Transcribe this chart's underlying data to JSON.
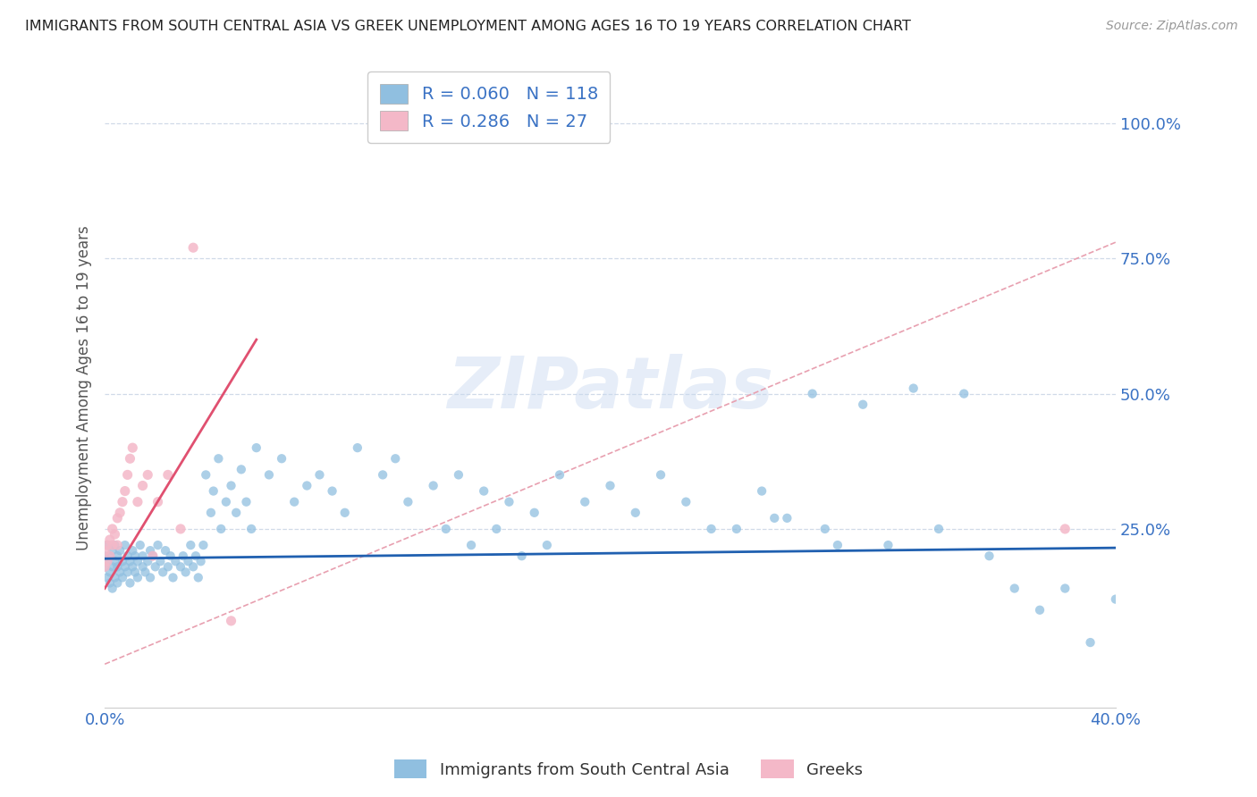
{
  "title": "IMMIGRANTS FROM SOUTH CENTRAL ASIA VS GREEK UNEMPLOYMENT AMONG AGES 16 TO 19 YEARS CORRELATION CHART",
  "source": "Source: ZipAtlas.com",
  "ylabel": "Unemployment Among Ages 16 to 19 years",
  "xlim": [
    0.0,
    0.4
  ],
  "ylim": [
    -0.08,
    1.1
  ],
  "yticks": [
    0.0,
    0.25,
    0.5,
    0.75,
    1.0
  ],
  "yticklabels": [
    "",
    "25.0%",
    "50.0%",
    "75.0%",
    "100.0%"
  ],
  "blue_R": 0.06,
  "blue_N": 118,
  "pink_R": 0.286,
  "pink_N": 27,
  "blue_color": "#90bfe0",
  "pink_color": "#f4b8c8",
  "blue_line_color": "#2060b0",
  "pink_line_color": "#e05070",
  "ref_line_color": "#e8a0b0",
  "grid_color": "#d0dae8",
  "watermark": "ZIPatlas",
  "legend_label_blue": "Immigrants from South Central Asia",
  "legend_label_pink": "Greeks",
  "blue_line_x0": 0.0,
  "blue_line_y0": 0.195,
  "blue_line_x1": 0.4,
  "blue_line_y1": 0.215,
  "pink_line_x0": 0.0,
  "pink_line_y0": 0.14,
  "pink_line_x1": 0.06,
  "pink_line_y1": 0.6,
  "ref_line_x0": 0.0,
  "ref_line_y0": 0.0,
  "ref_line_x1": 0.4,
  "ref_line_y1": 0.78,
  "blue_scatter_x": [
    0.0,
    0.0,
    0.001,
    0.001,
    0.001,
    0.002,
    0.002,
    0.002,
    0.003,
    0.003,
    0.003,
    0.004,
    0.004,
    0.004,
    0.005,
    0.005,
    0.005,
    0.006,
    0.006,
    0.007,
    0.007,
    0.008,
    0.008,
    0.009,
    0.009,
    0.01,
    0.01,
    0.011,
    0.011,
    0.012,
    0.012,
    0.013,
    0.013,
    0.014,
    0.015,
    0.015,
    0.016,
    0.017,
    0.018,
    0.018,
    0.019,
    0.02,
    0.021,
    0.022,
    0.023,
    0.024,
    0.025,
    0.026,
    0.027,
    0.028,
    0.03,
    0.031,
    0.032,
    0.033,
    0.034,
    0.035,
    0.036,
    0.037,
    0.038,
    0.039,
    0.04,
    0.042,
    0.043,
    0.045,
    0.046,
    0.048,
    0.05,
    0.052,
    0.054,
    0.056,
    0.058,
    0.06,
    0.065,
    0.07,
    0.075,
    0.08,
    0.085,
    0.09,
    0.095,
    0.1,
    0.11,
    0.115,
    0.12,
    0.13,
    0.14,
    0.15,
    0.155,
    0.16,
    0.17,
    0.18,
    0.19,
    0.2,
    0.21,
    0.22,
    0.23,
    0.24,
    0.26,
    0.28,
    0.3,
    0.32,
    0.33,
    0.34,
    0.35,
    0.36,
    0.37,
    0.38,
    0.39,
    0.4,
    0.25,
    0.27,
    0.29,
    0.31,
    0.285,
    0.265,
    0.175,
    0.165,
    0.145,
    0.135
  ],
  "blue_scatter_y": [
    0.18,
    0.2,
    0.16,
    0.19,
    0.22,
    0.17,
    0.2,
    0.15,
    0.18,
    0.21,
    0.14,
    0.19,
    0.16,
    0.22,
    0.18,
    0.2,
    0.15,
    0.17,
    0.21,
    0.16,
    0.19,
    0.18,
    0.22,
    0.17,
    0.2,
    0.19,
    0.15,
    0.18,
    0.21,
    0.17,
    0.2,
    0.16,
    0.19,
    0.22,
    0.18,
    0.2,
    0.17,
    0.19,
    0.21,
    0.16,
    0.2,
    0.18,
    0.22,
    0.19,
    0.17,
    0.21,
    0.18,
    0.2,
    0.16,
    0.19,
    0.18,
    0.2,
    0.17,
    0.19,
    0.22,
    0.18,
    0.2,
    0.16,
    0.19,
    0.22,
    0.35,
    0.28,
    0.32,
    0.38,
    0.25,
    0.3,
    0.33,
    0.28,
    0.36,
    0.3,
    0.25,
    0.4,
    0.35,
    0.38,
    0.3,
    0.33,
    0.35,
    0.32,
    0.28,
    0.4,
    0.35,
    0.38,
    0.3,
    0.33,
    0.35,
    0.32,
    0.25,
    0.3,
    0.28,
    0.35,
    0.3,
    0.33,
    0.28,
    0.35,
    0.3,
    0.25,
    0.32,
    0.5,
    0.48,
    0.51,
    0.25,
    0.5,
    0.2,
    0.14,
    0.1,
    0.14,
    0.04,
    0.12,
    0.25,
    0.27,
    0.22,
    0.22,
    0.25,
    0.27,
    0.22,
    0.2,
    0.22,
    0.25
  ],
  "pink_scatter_x": [
    0.0,
    0.0,
    0.001,
    0.001,
    0.002,
    0.002,
    0.003,
    0.003,
    0.004,
    0.005,
    0.005,
    0.006,
    0.007,
    0.008,
    0.009,
    0.01,
    0.011,
    0.013,
    0.015,
    0.017,
    0.019,
    0.021,
    0.025,
    0.03,
    0.035,
    0.38,
    0.05
  ],
  "pink_scatter_y": [
    0.18,
    0.21,
    0.19,
    0.22,
    0.2,
    0.23,
    0.22,
    0.25,
    0.24,
    0.27,
    0.22,
    0.28,
    0.3,
    0.32,
    0.35,
    0.38,
    0.4,
    0.3,
    0.33,
    0.35,
    0.2,
    0.3,
    0.35,
    0.25,
    0.77,
    0.25,
    0.08
  ]
}
